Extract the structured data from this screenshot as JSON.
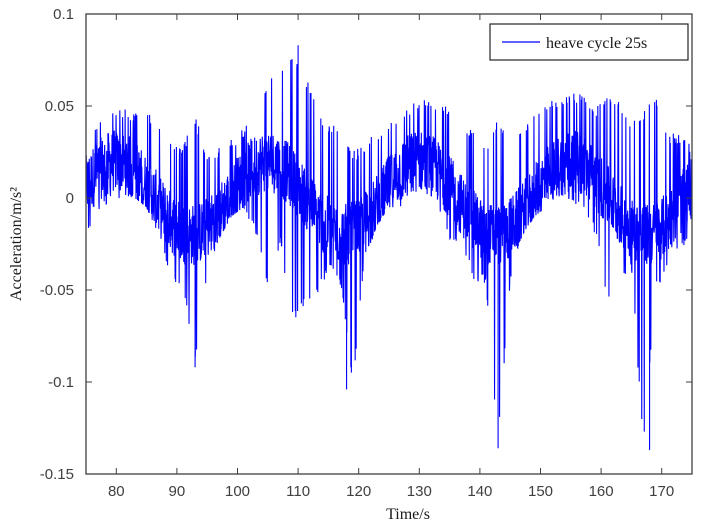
{
  "chart_data": {
    "type": "line",
    "title": "",
    "xlabel": "Time/s",
    "ylabel": "Acceleration/m/s²",
    "xlim": [
      75,
      175
    ],
    "ylim": [
      -0.15,
      0.1
    ],
    "xticks": [
      80,
      90,
      100,
      110,
      120,
      130,
      140,
      150,
      160,
      170
    ],
    "yticks": [
      0.1,
      0.05,
      0,
      -0.05,
      -0.1,
      -0.15
    ],
    "ytick_labels": [
      "0.1",
      "0.05",
      "0",
      "-0.05",
      "-0.1",
      "-0.15"
    ],
    "grid": false,
    "legend_position": "upper right",
    "series": [
      {
        "name": "heave cycle 25s",
        "color": "#0000ff",
        "description": "Noisy acceleration signal oscillating around a ~25 s period sinusoid (amplitude ~0.02) with occasional downward spikes",
        "envelope_step_s": 2,
        "envelope_t": [
          75,
          77,
          79,
          81,
          83,
          85,
          87,
          89,
          91,
          93,
          95,
          97,
          99,
          101,
          103,
          105,
          107,
          109,
          111,
          113,
          115,
          117,
          119,
          121,
          123,
          125,
          127,
          129,
          131,
          133,
          135,
          137,
          139,
          141,
          143,
          145,
          147,
          149,
          151,
          153,
          155,
          157,
          159,
          161,
          163,
          165,
          167,
          169,
          171,
          173,
          175
        ],
        "upper": [
          0.035,
          0.042,
          0.048,
          0.05,
          0.046,
          0.048,
          0.04,
          0.03,
          0.028,
          0.045,
          0.025,
          0.028,
          0.032,
          0.038,
          0.048,
          0.062,
          0.072,
          0.08,
          0.07,
          0.05,
          0.04,
          0.04,
          0.025,
          0.03,
          0.036,
          0.042,
          0.048,
          0.052,
          0.055,
          0.05,
          0.05,
          0.045,
          0.035,
          0.03,
          0.045,
          0.03,
          0.038,
          0.045,
          0.052,
          0.055,
          0.058,
          0.056,
          0.05,
          0.055,
          0.055,
          0.04,
          0.048,
          0.055,
          0.035,
          0.035,
          0.03
        ],
        "lower": [
          -0.022,
          -0.008,
          -0.002,
          0.0,
          0.0,
          -0.005,
          -0.02,
          -0.048,
          -0.05,
          -0.092,
          -0.04,
          -0.022,
          -0.01,
          -0.005,
          -0.02,
          -0.05,
          -0.025,
          -0.067,
          -0.06,
          -0.055,
          -0.04,
          -0.048,
          -0.104,
          -0.035,
          -0.015,
          -0.005,
          -0.005,
          0.0,
          0.0,
          -0.008,
          -0.025,
          -0.03,
          -0.045,
          -0.048,
          -0.136,
          -0.045,
          -0.02,
          -0.01,
          -0.005,
          0.0,
          -0.002,
          -0.005,
          -0.02,
          -0.055,
          -0.05,
          -0.04,
          -0.137,
          -0.05,
          -0.04,
          -0.03,
          -0.025
        ],
        "spikes": [
          {
            "t": 93,
            "value": -0.092
          },
          {
            "t": 110,
            "value": 0.083
          },
          {
            "t": 118,
            "value": -0.104
          },
          {
            "t": 143,
            "value": -0.136
          },
          {
            "t": 168,
            "value": -0.137
          }
        ]
      }
    ]
  },
  "legend": {
    "entries": [
      {
        "label": "heave cycle 25s",
        "color": "#0000ff"
      }
    ]
  },
  "axes": {
    "xlabel": "Time/s",
    "ylabel": "Acceleration/m/s²"
  }
}
